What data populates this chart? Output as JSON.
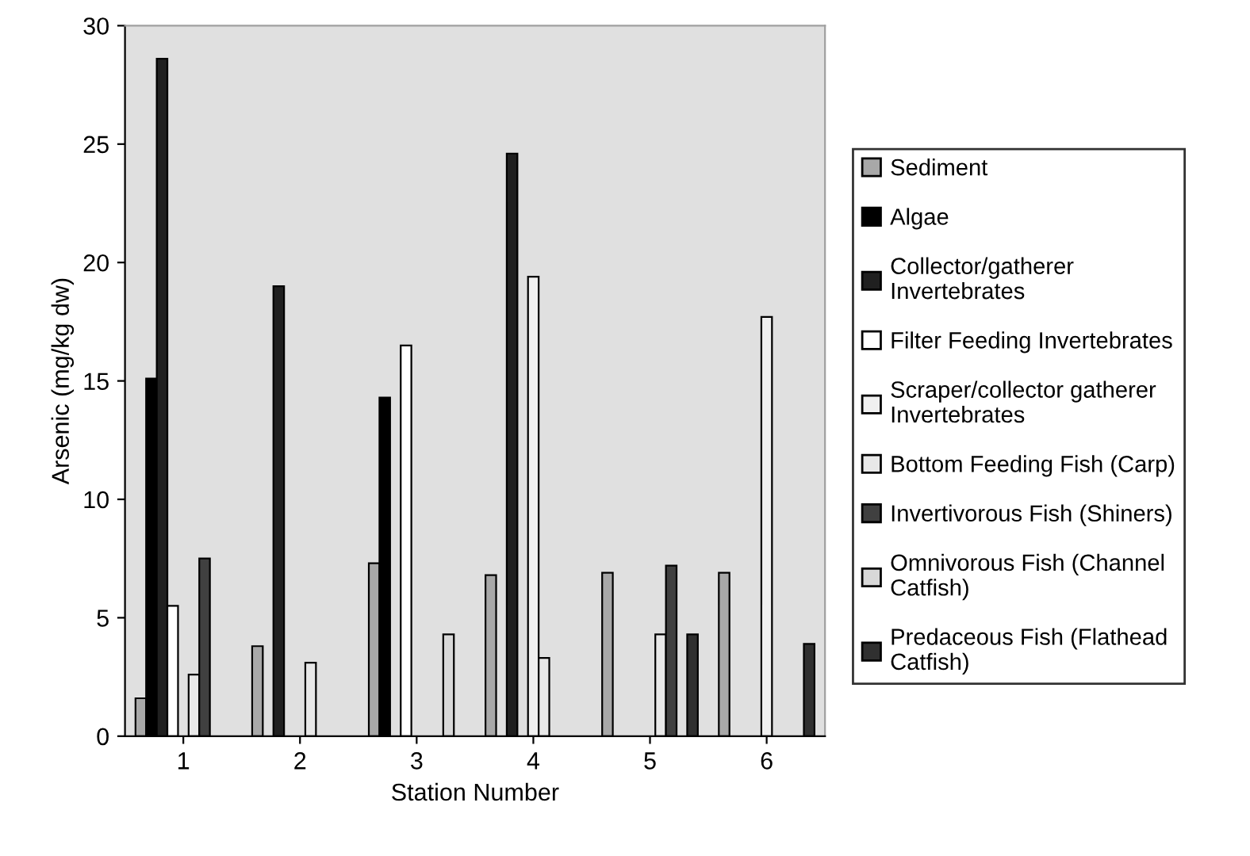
{
  "chart_data": {
    "type": "bar",
    "xlabel": "Station Number",
    "ylabel": "Arsenic (mg/kg dw)",
    "categories": [
      "1",
      "2",
      "3",
      "4",
      "5",
      "6"
    ],
    "series": [
      {
        "name": "Sediment",
        "color": "#a8a8a8",
        "values": [
          1.6,
          3.8,
          7.3,
          6.8,
          6.9,
          6.9
        ]
      },
      {
        "name": "Algae",
        "color": "#000000",
        "values": [
          15.1,
          null,
          14.3,
          null,
          null,
          null
        ]
      },
      {
        "name": "Collector/gatherer\nInvertebrates",
        "color": "#202020",
        "values": [
          28.6,
          19.0,
          null,
          24.6,
          null,
          null
        ]
      },
      {
        "name": "Filter Feeding Invertebrates",
        "color": "#ffffff",
        "values": [
          5.5,
          null,
          16.5,
          null,
          null,
          null
        ]
      },
      {
        "name": "Scraper/collector gatherer\nInvertebrates",
        "color": "#f0f0f0",
        "values": [
          null,
          null,
          null,
          19.4,
          null,
          17.7
        ]
      },
      {
        "name": "Bottom Feeding Fish (Carp)",
        "color": "#e8e8e8",
        "values": [
          2.6,
          3.1,
          null,
          3.3,
          4.3,
          null
        ]
      },
      {
        "name": "Invertivorous Fish (Shiners)",
        "color": "#404040",
        "values": [
          7.5,
          null,
          null,
          null,
          7.2,
          null
        ]
      },
      {
        "name": "Omnivorous Fish (Channel\nCatfish)",
        "color": "#d8d8d8",
        "values": [
          null,
          null,
          4.3,
          null,
          null,
          null
        ]
      },
      {
        "name": "Predaceous Fish (Flathead\nCatfish)",
        "color": "#303030",
        "values": [
          null,
          null,
          null,
          null,
          4.3,
          3.9
        ]
      }
    ],
    "ylim": [
      0,
      30
    ],
    "yticks": [
      0,
      5,
      10,
      15,
      20,
      25,
      30
    ],
    "grid": false,
    "legend": "right"
  }
}
